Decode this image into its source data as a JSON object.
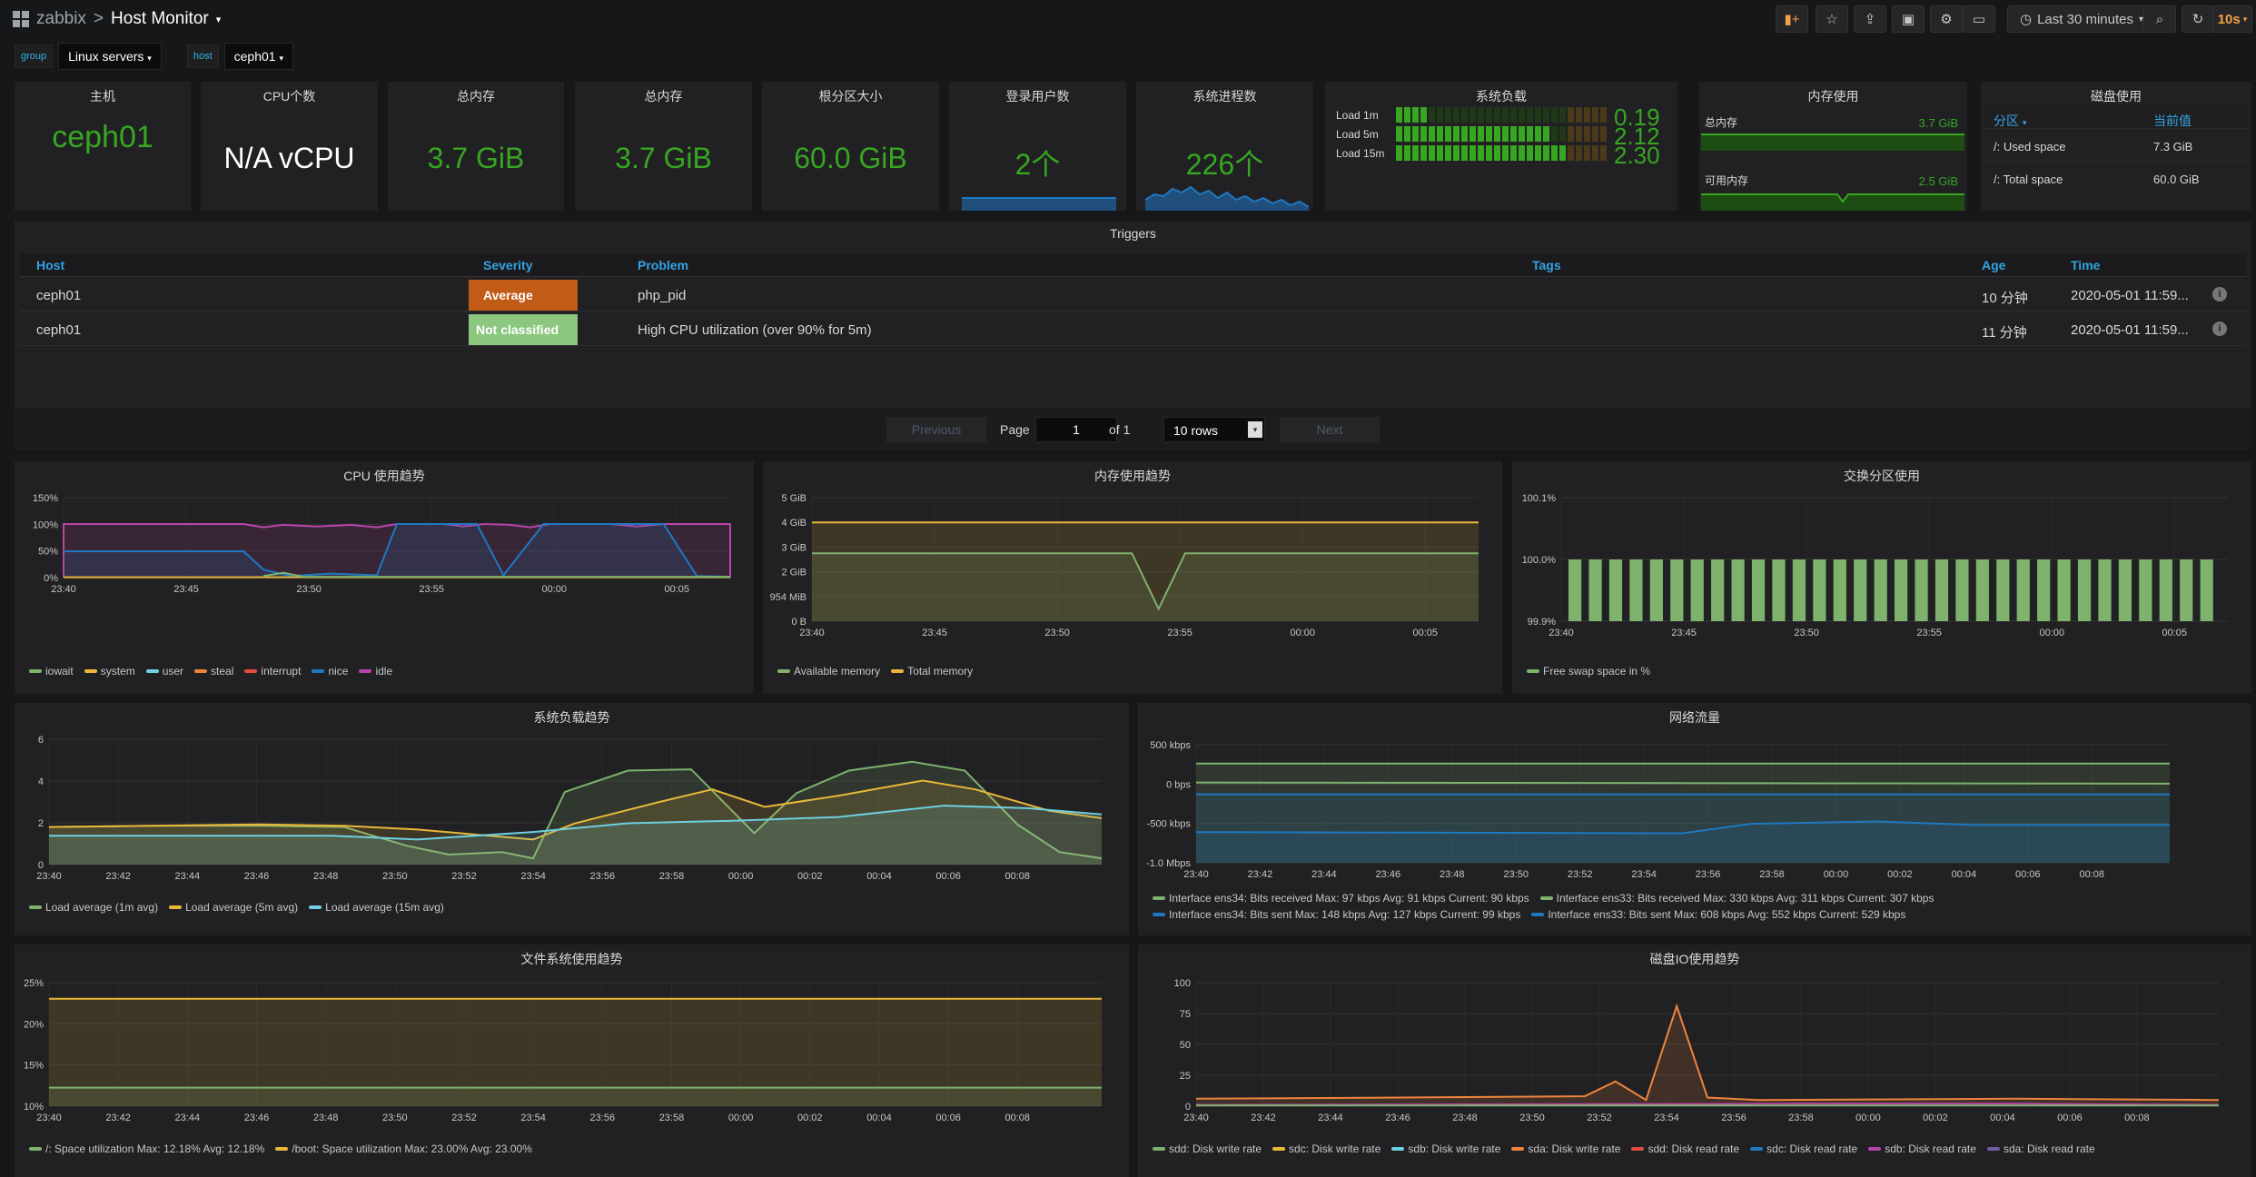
{
  "nav": {
    "app": "zabbix",
    "separator": ">",
    "title": "Host Monitor",
    "time_range": "Last 30 minutes",
    "refresh": "10s"
  },
  "variables": {
    "group_label": "group",
    "group_value": "Linux servers",
    "host_label": "host",
    "host_value": "ceph01"
  },
  "stats": {
    "host": {
      "title": "主机",
      "value": "ceph01"
    },
    "cpu": {
      "title": "CPU个数",
      "value": "N/A vCPU"
    },
    "mem1": {
      "title": "总内存",
      "value": "3.7 GiB"
    },
    "mem2": {
      "title": "总内存",
      "value": "3.7 GiB"
    },
    "root": {
      "title": "根分区大小",
      "value": "60.0 GiB"
    },
    "users": {
      "title": "登录用户数",
      "value": "2个"
    },
    "procs": {
      "title": "系统进程数",
      "value": "226个"
    }
  },
  "load_panel": {
    "title": "系统负载",
    "rows": [
      {
        "label": "Load 1m",
        "value": "0.19",
        "level": 0.13
      },
      {
        "label": "Load 5m",
        "value": "2.12",
        "level": 0.73
      },
      {
        "label": "Load 15m",
        "value": "2.30",
        "level": 0.8
      }
    ]
  },
  "mem_panel": {
    "title": "内存使用",
    "total_label": "总内存",
    "total_value": "3.7 GiB",
    "avail_label": "可用内存",
    "avail_value": "2.5 GiB"
  },
  "disk_panel": {
    "title": "磁盘使用",
    "col1": "分区",
    "col2": "当前值",
    "rows": [
      {
        "name": "/: Used space",
        "value": "7.3 GiB"
      },
      {
        "name": "/: Total space",
        "value": "60.0 GiB"
      }
    ]
  },
  "triggers": {
    "title": "Triggers",
    "headers": [
      "Host",
      "Severity",
      "Problem",
      "Tags",
      "Age",
      "Time"
    ],
    "rows": [
      {
        "host": "ceph01",
        "severity": "Average",
        "color": "#c15c17",
        "problem": "php_pid",
        "age": "10 分钟",
        "time": "2020-05-01 11:59..."
      },
      {
        "host": "ceph01",
        "severity": "Not classified",
        "color": "#8bc77e",
        "problem": "High CPU utilization (over 90% for 5m)",
        "age": "11 分钟",
        "time": "2020-05-01 11:59..."
      }
    ],
    "pager": {
      "previous": "Previous",
      "page": "Page",
      "current": "1",
      "of": "of 1",
      "rows": "10 rows",
      "next": "Next"
    }
  },
  "charts": {
    "cpu": {
      "title": "CPU 使用趋势",
      "y_ticks": [
        "150%",
        "100%",
        "50%",
        "0%"
      ],
      "x_ticks": [
        "23:40",
        "23:45",
        "23:50",
        "23:55",
        "00:00",
        "00:05"
      ],
      "legend": [
        "iowait",
        "system",
        "user",
        "steal",
        "interrupt",
        "nice",
        "idle"
      ]
    },
    "memory": {
      "title": "内存使用趋势",
      "y_ticks": [
        "5 GiB",
        "4 GiB",
        "3 GiB",
        "2 GiB",
        "954 MiB",
        "0 B"
      ],
      "x_ticks": [
        "23:40",
        "23:45",
        "23:50",
        "23:55",
        "00:00",
        "00:05"
      ],
      "legend": [
        "Available memory",
        "Total memory"
      ]
    },
    "swap": {
      "title": "交换分区使用",
      "y_ticks": [
        "100.1%",
        "100.0%",
        "99.9%"
      ],
      "x_ticks": [
        "23:40",
        "23:45",
        "23:50",
        "23:55",
        "00:00",
        "00:05"
      ],
      "legend": [
        "Free swap space in %"
      ]
    },
    "load": {
      "title": "系统负载趋势",
      "y_ticks": [
        "6",
        "4",
        "2",
        "0"
      ],
      "x_ticks": [
        "23:40",
        "23:42",
        "23:44",
        "23:46",
        "23:48",
        "23:50",
        "23:52",
        "23:54",
        "23:56",
        "23:58",
        "00:00",
        "00:02",
        "00:04",
        "00:06",
        "00:08"
      ],
      "legend": [
        "Load average (1m avg)",
        "Load average (5m avg)",
        "Load average (15m avg)"
      ]
    },
    "net": {
      "title": "网络流量",
      "y_ticks": [
        "500 kbps",
        "0 bps",
        "-500 kbps",
        "-1.0 Mbps"
      ],
      "x_ticks": [
        "23:40",
        "23:42",
        "23:44",
        "23:46",
        "23:48",
        "23:50",
        "23:52",
        "23:54",
        "23:56",
        "23:58",
        "00:00",
        "00:02",
        "00:04",
        "00:06",
        "00:08"
      ],
      "legend": [
        "Interface ens34: Bits received  Max: 97 kbps  Avg: 91 kbps  Current: 90 kbps",
        "Interface ens33: Bits received  Max: 330 kbps  Avg: 311 kbps  Current: 307 kbps",
        "Interface ens34: Bits sent  Max: 148 kbps  Avg: 127 kbps  Current: 99 kbps",
        "Interface ens33: Bits sent  Max: 608 kbps  Avg: 552 kbps  Current: 529 kbps"
      ]
    },
    "fs": {
      "title": "文件系统使用趋势",
      "y_ticks": [
        "25%",
        "20%",
        "15%",
        "10%"
      ],
      "x_ticks": [
        "23:40",
        "23:42",
        "23:44",
        "23:46",
        "23:48",
        "23:50",
        "23:52",
        "23:54",
        "23:56",
        "23:58",
        "00:00",
        "00:02",
        "00:04",
        "00:06",
        "00:08"
      ],
      "legend": [
        "/: Space utilization  Max: 12.18%  Avg: 12.18%",
        "/boot: Space utilization  Max: 23.00%  Avg: 23.00%"
      ]
    },
    "disk": {
      "title": "磁盘IO使用趋势",
      "y_ticks": [
        "100",
        "75",
        "50",
        "25",
        "0"
      ],
      "x_ticks": [
        "23:40",
        "23:42",
        "23:44",
        "23:46",
        "23:48",
        "23:50",
        "23:52",
        "23:54",
        "23:56",
        "23:58",
        "00:00",
        "00:02",
        "00:04",
        "00:06",
        "00:08"
      ],
      "legend": [
        "sdd: Disk write rate",
        "sdc: Disk write rate",
        "sdb: Disk write rate",
        "sda: Disk write rate",
        "sdd: Disk read rate",
        "sdc: Disk read rate",
        "sdb: Disk read rate",
        "sda: Disk read rate"
      ]
    }
  },
  "colors": {
    "green": "#7eb26d",
    "yellow": "#eab839",
    "cyan": "#6ed0e0",
    "orange": "#ef843c",
    "red": "#e24d42",
    "blue": "#1f78c1",
    "pink": "#ba43a9",
    "value_green": "#37a621"
  }
}
